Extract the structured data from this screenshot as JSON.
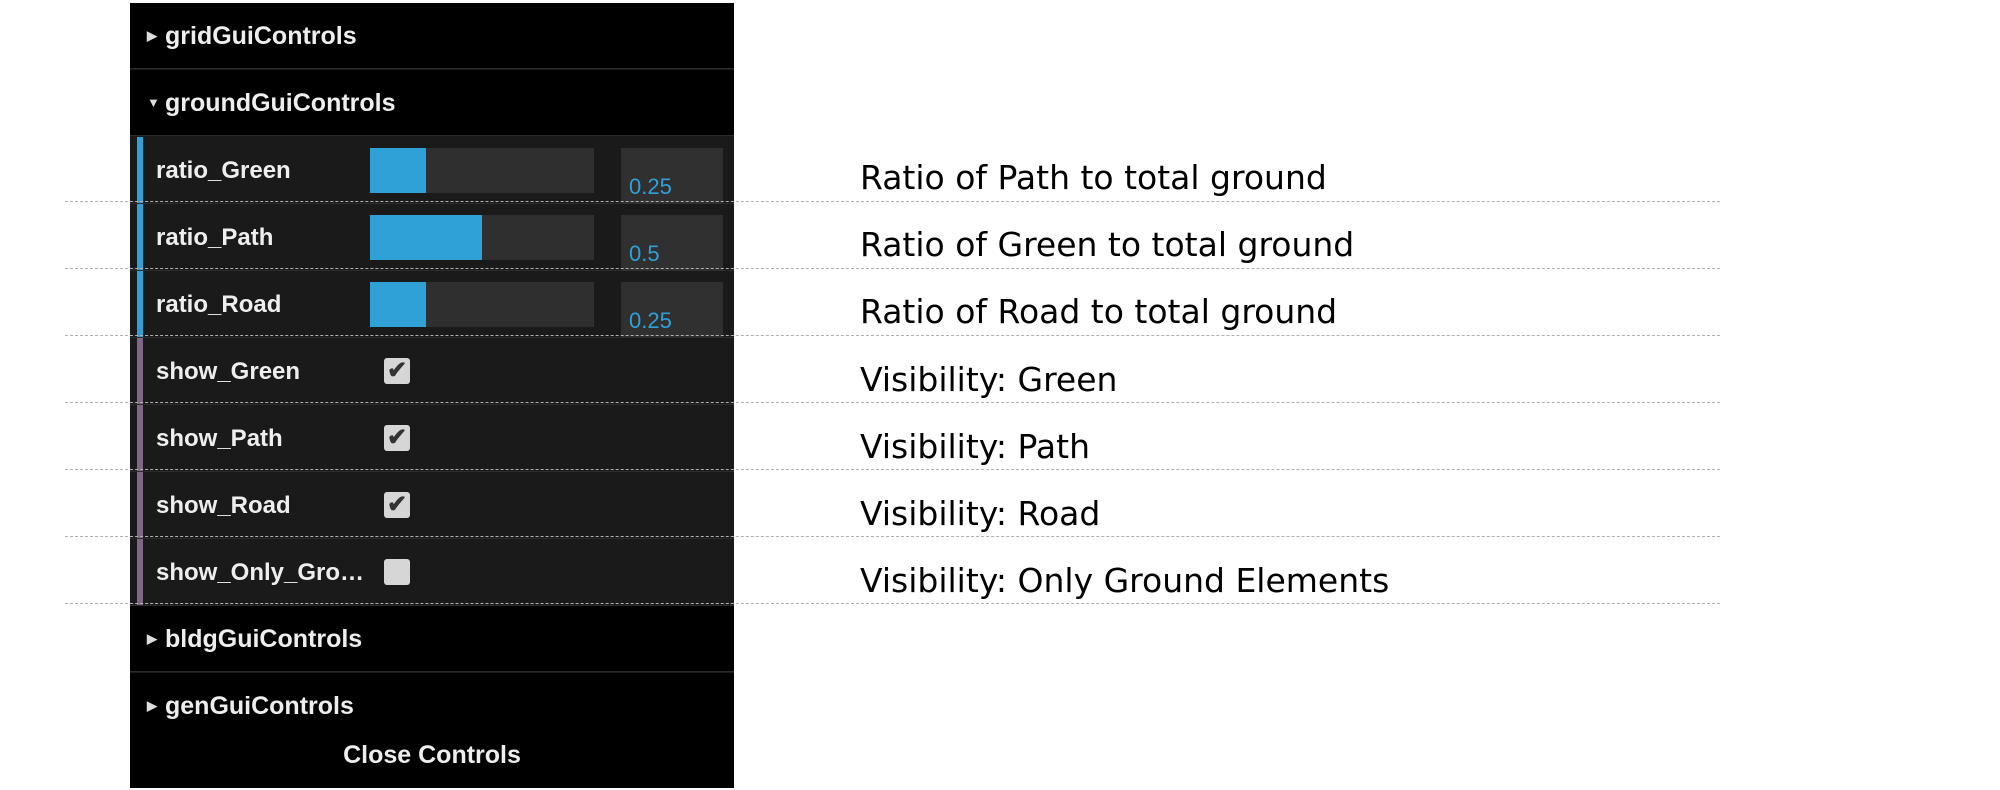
{
  "panel": {
    "folders_top": [
      {
        "label": "gridGuiControls",
        "expanded": false
      },
      {
        "label": "groundGuiControls",
        "expanded": true
      }
    ],
    "sliders": [
      {
        "label": "ratio_Green",
        "value": "0.25",
        "fraction": 0.25
      },
      {
        "label": "ratio_Path",
        "value": "0.5",
        "fraction": 0.5
      },
      {
        "label": "ratio_Road",
        "value": "0.25",
        "fraction": 0.25
      }
    ],
    "checkboxes": [
      {
        "label": "show_Green",
        "checked": true
      },
      {
        "label": "show_Path",
        "checked": true
      },
      {
        "label": "show_Road",
        "checked": true
      },
      {
        "label": "show_Only_Gro…",
        "checked": false
      }
    ],
    "folders_bottom": [
      {
        "label": "bldgGuiControls",
        "expanded": false
      },
      {
        "label": "genGuiControls",
        "expanded": false
      }
    ],
    "close_label": "Close Controls"
  },
  "annotations": [
    "Ratio of Path to total ground",
    "Ratio of Green to total ground",
    "Ratio of Road to total ground",
    "Visibility: Green",
    "Visibility: Path",
    "Visibility: Road",
    "Visibility: Only Ground Elements"
  ],
  "colors": {
    "slider_accent": "#2fa1d6",
    "checkbox_accent": "#806787",
    "panel_bg": "#1a1a1a",
    "header_bg": "#000000"
  },
  "icons": {
    "collapsed": "triangle-right-icon",
    "expanded": "triangle-down-icon",
    "check": "checkmark-icon"
  }
}
